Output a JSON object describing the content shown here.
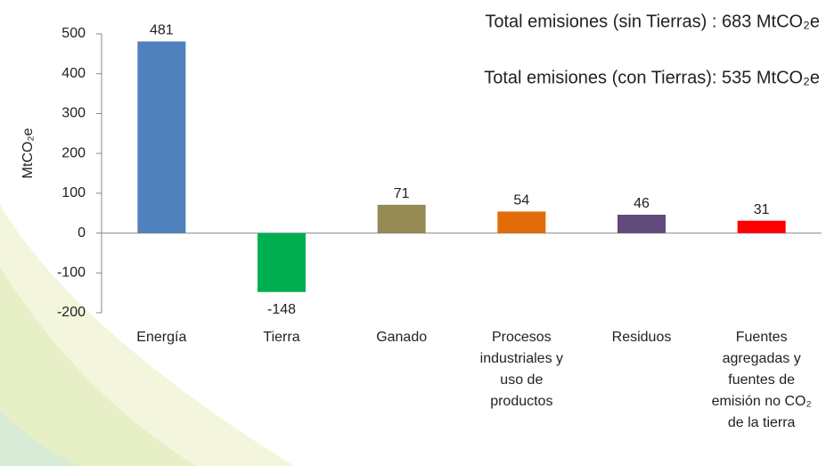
{
  "chart_data": {
    "type": "bar",
    "annotations": [
      "Total emisiones (sin Tierras) : 683 MtCO₂e",
      "Total emisiones (con Tierras): 535 MtCO₂e"
    ],
    "y_label": "MtCO₂e",
    "categories": [
      "Energía",
      "Tierra",
      "Ganado",
      "Procesos industriales y uso de productos",
      "Residuos",
      "Fuentes agregadas y fuentes de emisión no CO₂ de la tierra"
    ],
    "values": [
      481,
      -148,
      71,
      54,
      46,
      31
    ],
    "colors": [
      "#4f81bd",
      "#00b050",
      "#948a54",
      "#e36c09",
      "#604a7b",
      "#ff0000"
    ],
    "ylim": [
      -200,
      500
    ],
    "yticks": [
      -200,
      -100,
      0,
      100,
      200,
      300,
      400,
      500
    ],
    "grid": false
  }
}
